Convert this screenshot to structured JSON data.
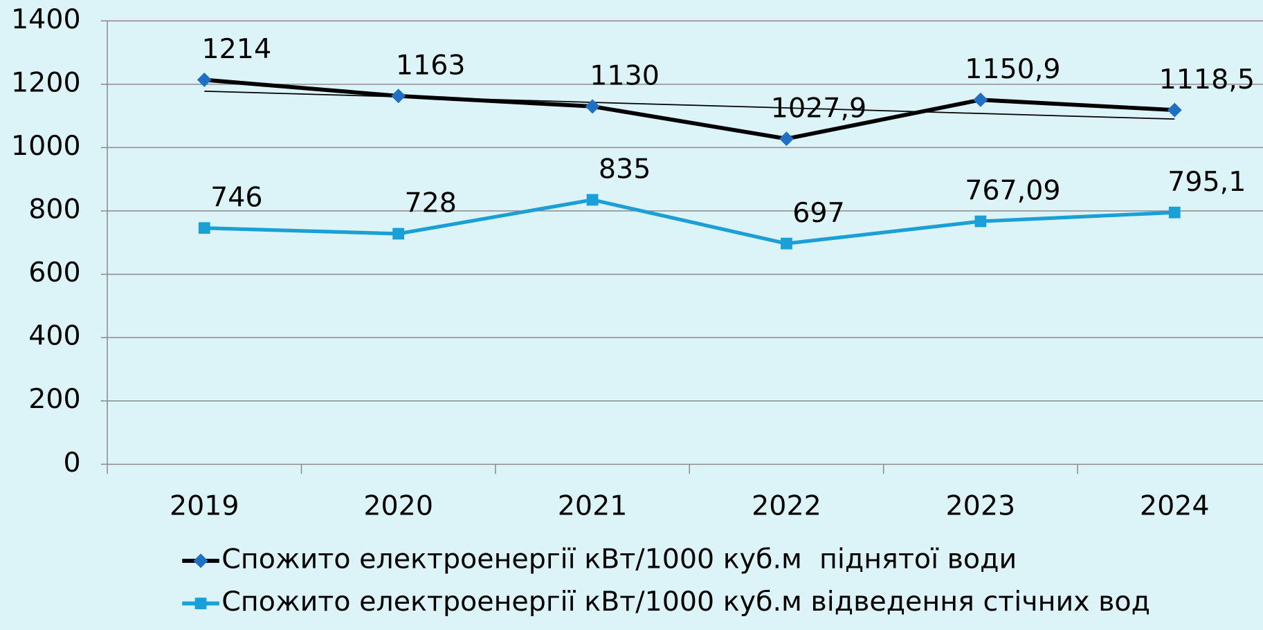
{
  "chart_data": {
    "type": "line",
    "categories": [
      "2019",
      "2020",
      "2021",
      "2022",
      "2023",
      "2024"
    ],
    "series": [
      {
        "name": "Спожито електроенергії кВт/1000 куб.м  піднятої води",
        "color": "#000000",
        "marker_color": "#1f6fc5",
        "marker": "diamond",
        "trendline": true,
        "values": [
          1214,
          1163,
          1130,
          1027.9,
          1150.9,
          1118.5
        ],
        "value_labels": [
          "1214",
          "1163",
          "1130",
          "1027,9",
          "1150,9",
          "1118,5"
        ]
      },
      {
        "name": "Спожито електроенергії кВт/1000 куб.м відведення стічних вод",
        "color": "#1a9fd6",
        "marker_color": "#1a9fd6",
        "marker": "square",
        "trendline": false,
        "values": [
          746,
          728,
          835,
          697,
          767.09,
          795.1
        ],
        "value_labels": [
          "746",
          "728",
          "835",
          "697",
          "767,09",
          "795,1"
        ]
      }
    ],
    "ylim": [
      0,
      1400
    ],
    "yticks": [
      0,
      200,
      400,
      600,
      800,
      1000,
      1200,
      1400
    ],
    "grid": true,
    "legend": "bottom"
  }
}
